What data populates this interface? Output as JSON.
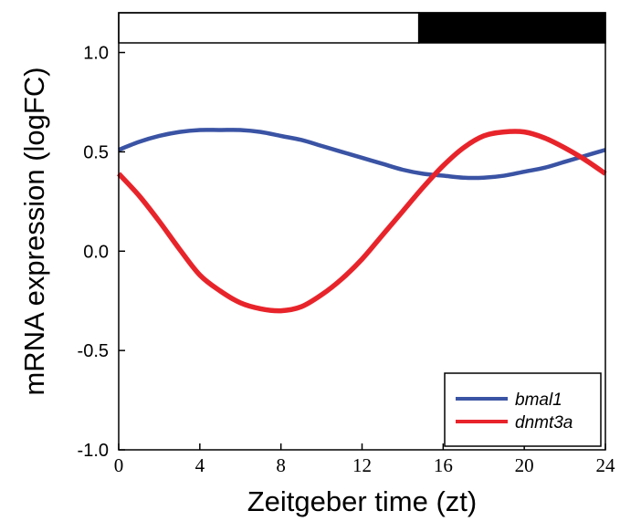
{
  "chart_data": {
    "type": "line",
    "xlabel": "Zeitgeber time (zt)",
    "ylabel": "mRNA expression (logFC)",
    "xlim": [
      0,
      24
    ],
    "ylim": [
      -1.0,
      1.2
    ],
    "x_ticks": [
      0,
      4,
      8,
      12,
      16,
      20,
      24
    ],
    "x_tick_labels": [
      "0",
      "4",
      "8",
      "12",
      "16",
      "20",
      "24"
    ],
    "y_ticks": [
      -1.0,
      -0.5,
      0.0,
      0.5,
      1.0
    ],
    "y_tick_labels": [
      "-1.0",
      "-0.5",
      "0.0",
      "0.5",
      "1.0"
    ],
    "grid": false,
    "legend_position": "bottom-right",
    "light_dark_bar": {
      "light": [
        0,
        14.8
      ],
      "dark": [
        14.8,
        24
      ],
      "light_color": "#ffffff",
      "dark_color": "#000000"
    },
    "x": [
      0,
      1,
      2,
      3,
      4,
      5,
      6,
      7,
      8,
      9,
      10,
      11,
      12,
      13,
      14,
      15,
      16,
      17,
      18,
      19,
      20,
      21,
      22,
      23,
      24
    ],
    "series": [
      {
        "name": "bmal1",
        "color": "#3a53a4",
        "values": [
          0.51,
          0.55,
          0.58,
          0.6,
          0.61,
          0.61,
          0.61,
          0.6,
          0.58,
          0.56,
          0.53,
          0.5,
          0.47,
          0.44,
          0.41,
          0.39,
          0.38,
          0.37,
          0.37,
          0.38,
          0.4,
          0.42,
          0.45,
          0.48,
          0.51
        ]
      },
      {
        "name": "dnmt3a",
        "color": "#e8242b",
        "values": [
          0.39,
          0.28,
          0.15,
          0.01,
          -0.12,
          -0.2,
          -0.26,
          -0.29,
          -0.3,
          -0.28,
          -0.22,
          -0.14,
          -0.04,
          0.08,
          0.2,
          0.32,
          0.43,
          0.52,
          0.58,
          0.6,
          0.6,
          0.57,
          0.52,
          0.46,
          0.39
        ]
      }
    ]
  }
}
